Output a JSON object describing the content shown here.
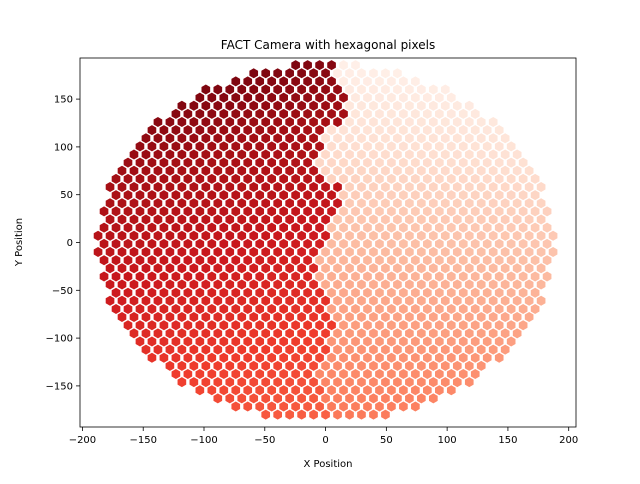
{
  "chart_data": {
    "type": "scatter",
    "marker": "hexagon",
    "title": "FACT Camera with hexagonal pixels",
    "xlabel": "X Position",
    "ylabel": "Y Position",
    "xlim": [
      -202,
      206
    ],
    "ylim": [
      -193,
      193
    ],
    "xticks": [
      -200,
      -150,
      -100,
      -50,
      0,
      50,
      100,
      150,
      200
    ],
    "yticks": [
      -150,
      -100,
      -50,
      0,
      50,
      100,
      150
    ],
    "xtick_labels": [
      "−200",
      "−150",
      "−100",
      "−50",
      "0",
      "50",
      "100",
      "150",
      "200"
    ],
    "ytick_labels": [
      "−150",
      "−100",
      "−50",
      "0",
      "50",
      "100",
      "150"
    ],
    "grid": false,
    "colormap": "Reds",
    "pixel_layout": {
      "row_spacing": 8.5,
      "column_spacing": 9.85,
      "camera_radius": 188,
      "top_y": 183,
      "bottom_y": -180
    },
    "value_model": {
      "left_half": "values high, darkest at top-left, decreasing toward bottom",
      "right_half": "values low, lightest at top-right, increasing toward bottom",
      "boundary": "zigzag near x = 0"
    }
  }
}
